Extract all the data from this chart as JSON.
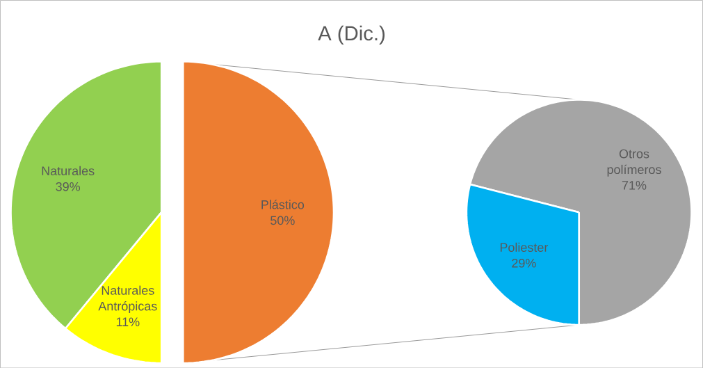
{
  "chart_data": [
    {
      "type": "pie",
      "title": "A (Dic.)",
      "categories": [
        "Naturales",
        "Naturales Antrópicas",
        "Plástico"
      ],
      "values": [
        39,
        11,
        50
      ],
      "colors": [
        "#92d050",
        "#ffff00",
        "#ed7d31"
      ],
      "value_labels": [
        "39%",
        "11%",
        "50%"
      ]
    },
    {
      "type": "pie",
      "categories": [
        "Otros polímeros",
        "Poliester"
      ],
      "values": [
        71,
        29
      ],
      "colors": [
        "#a5a5a5",
        "#00b0f0"
      ],
      "value_labels": [
        "71%",
        "29%"
      ]
    }
  ]
}
